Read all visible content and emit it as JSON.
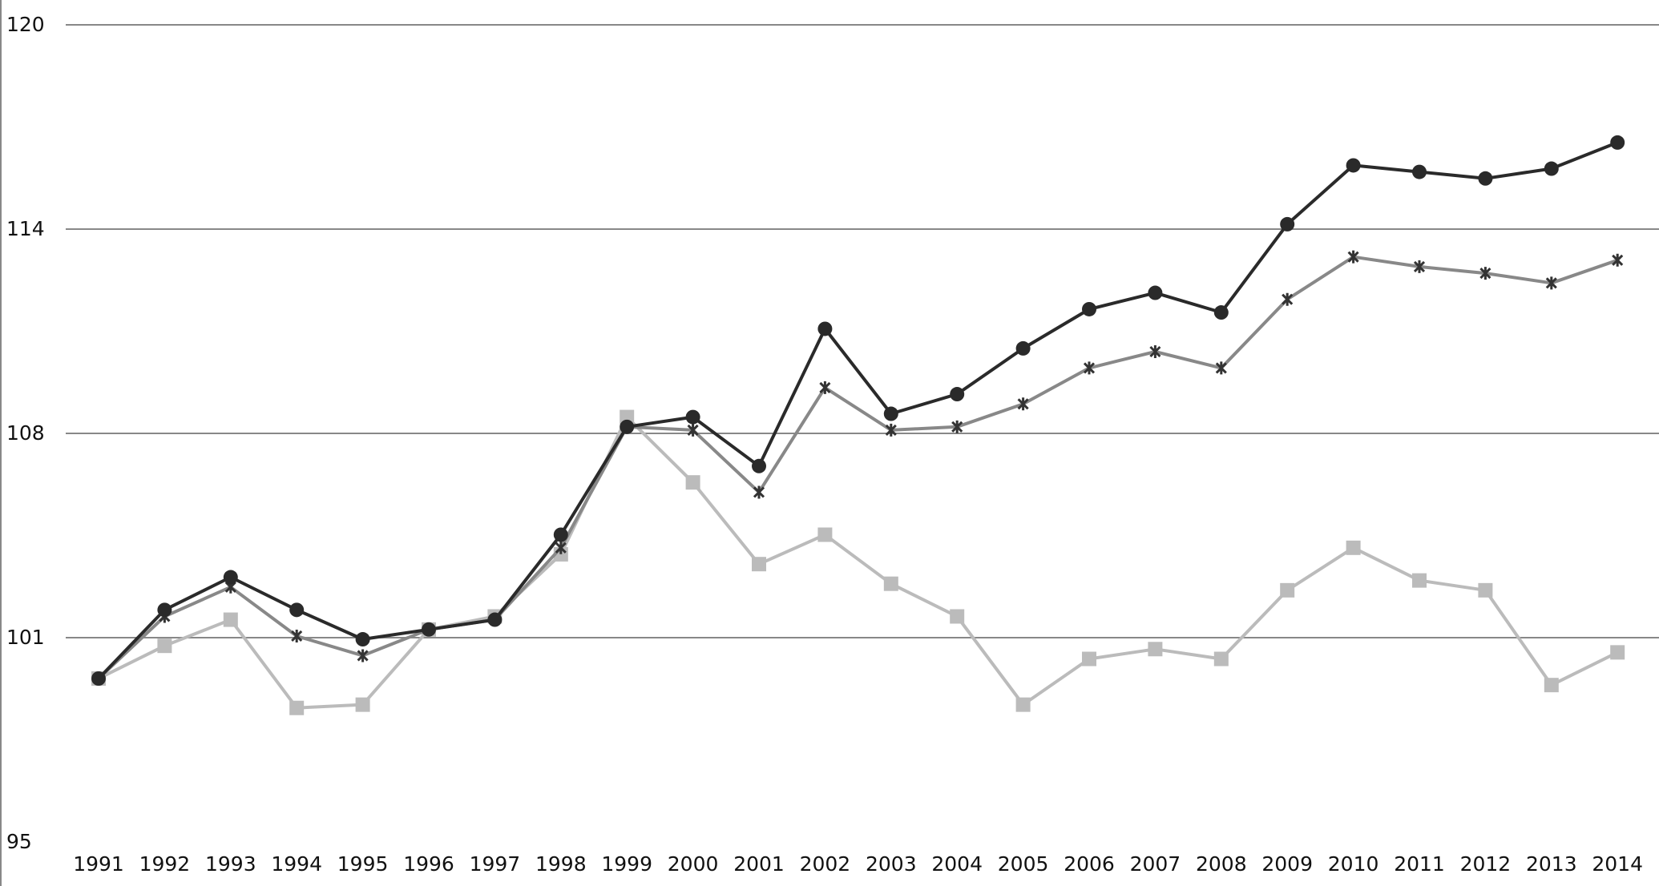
{
  "chart_data": {
    "type": "line",
    "title": "",
    "xlabel": "",
    "ylabel": "",
    "x": [
      "1991",
      "1992",
      "1993",
      "1994",
      "1995",
      "1996",
      "1997",
      "1998",
      "1999",
      "2000",
      "2001",
      "2002",
      "2003",
      "2004",
      "2005",
      "2006",
      "2007",
      "2008",
      "2009",
      "2010",
      "2011",
      "2012",
      "2013",
      "2014"
    ],
    "ylim": [
      95,
      120
    ],
    "yticks": [
      "95",
      "101",
      "108",
      "114",
      "120"
    ],
    "ytick_values": [
      95,
      101.25,
      107.5,
      113.75,
      120
    ],
    "grid": true,
    "legend": "none",
    "series": [
      {
        "marker": "circle",
        "color": "#2a2a2a",
        "values": [
          100.0,
          102.1,
          103.1,
          102.1,
          101.2,
          101.5,
          101.8,
          104.4,
          107.7,
          108.0,
          106.5,
          110.7,
          108.1,
          108.7,
          110.1,
          111.3,
          111.8,
          111.2,
          113.9,
          115.7,
          115.5,
          115.3,
          115.6,
          116.4
        ]
      },
      {
        "marker": "star",
        "color": "#888888",
        "values": [
          100.0,
          101.9,
          102.8,
          101.3,
          100.7,
          101.5,
          101.8,
          104.0,
          107.7,
          107.6,
          105.7,
          108.9,
          107.6,
          107.7,
          108.4,
          109.5,
          110.0,
          109.5,
          111.6,
          112.9,
          112.6,
          112.4,
          112.1,
          112.8
        ]
      },
      {
        "marker": "square",
        "color": "#bbbbbb",
        "values": [
          100.0,
          101.0,
          101.8,
          99.1,
          99.2,
          101.5,
          101.9,
          103.8,
          108.0,
          106.0,
          103.5,
          104.4,
          102.9,
          101.9,
          99.2,
          100.6,
          100.9,
          100.6,
          102.7,
          104.0,
          103.0,
          102.7,
          99.8,
          100.8
        ]
      }
    ]
  }
}
